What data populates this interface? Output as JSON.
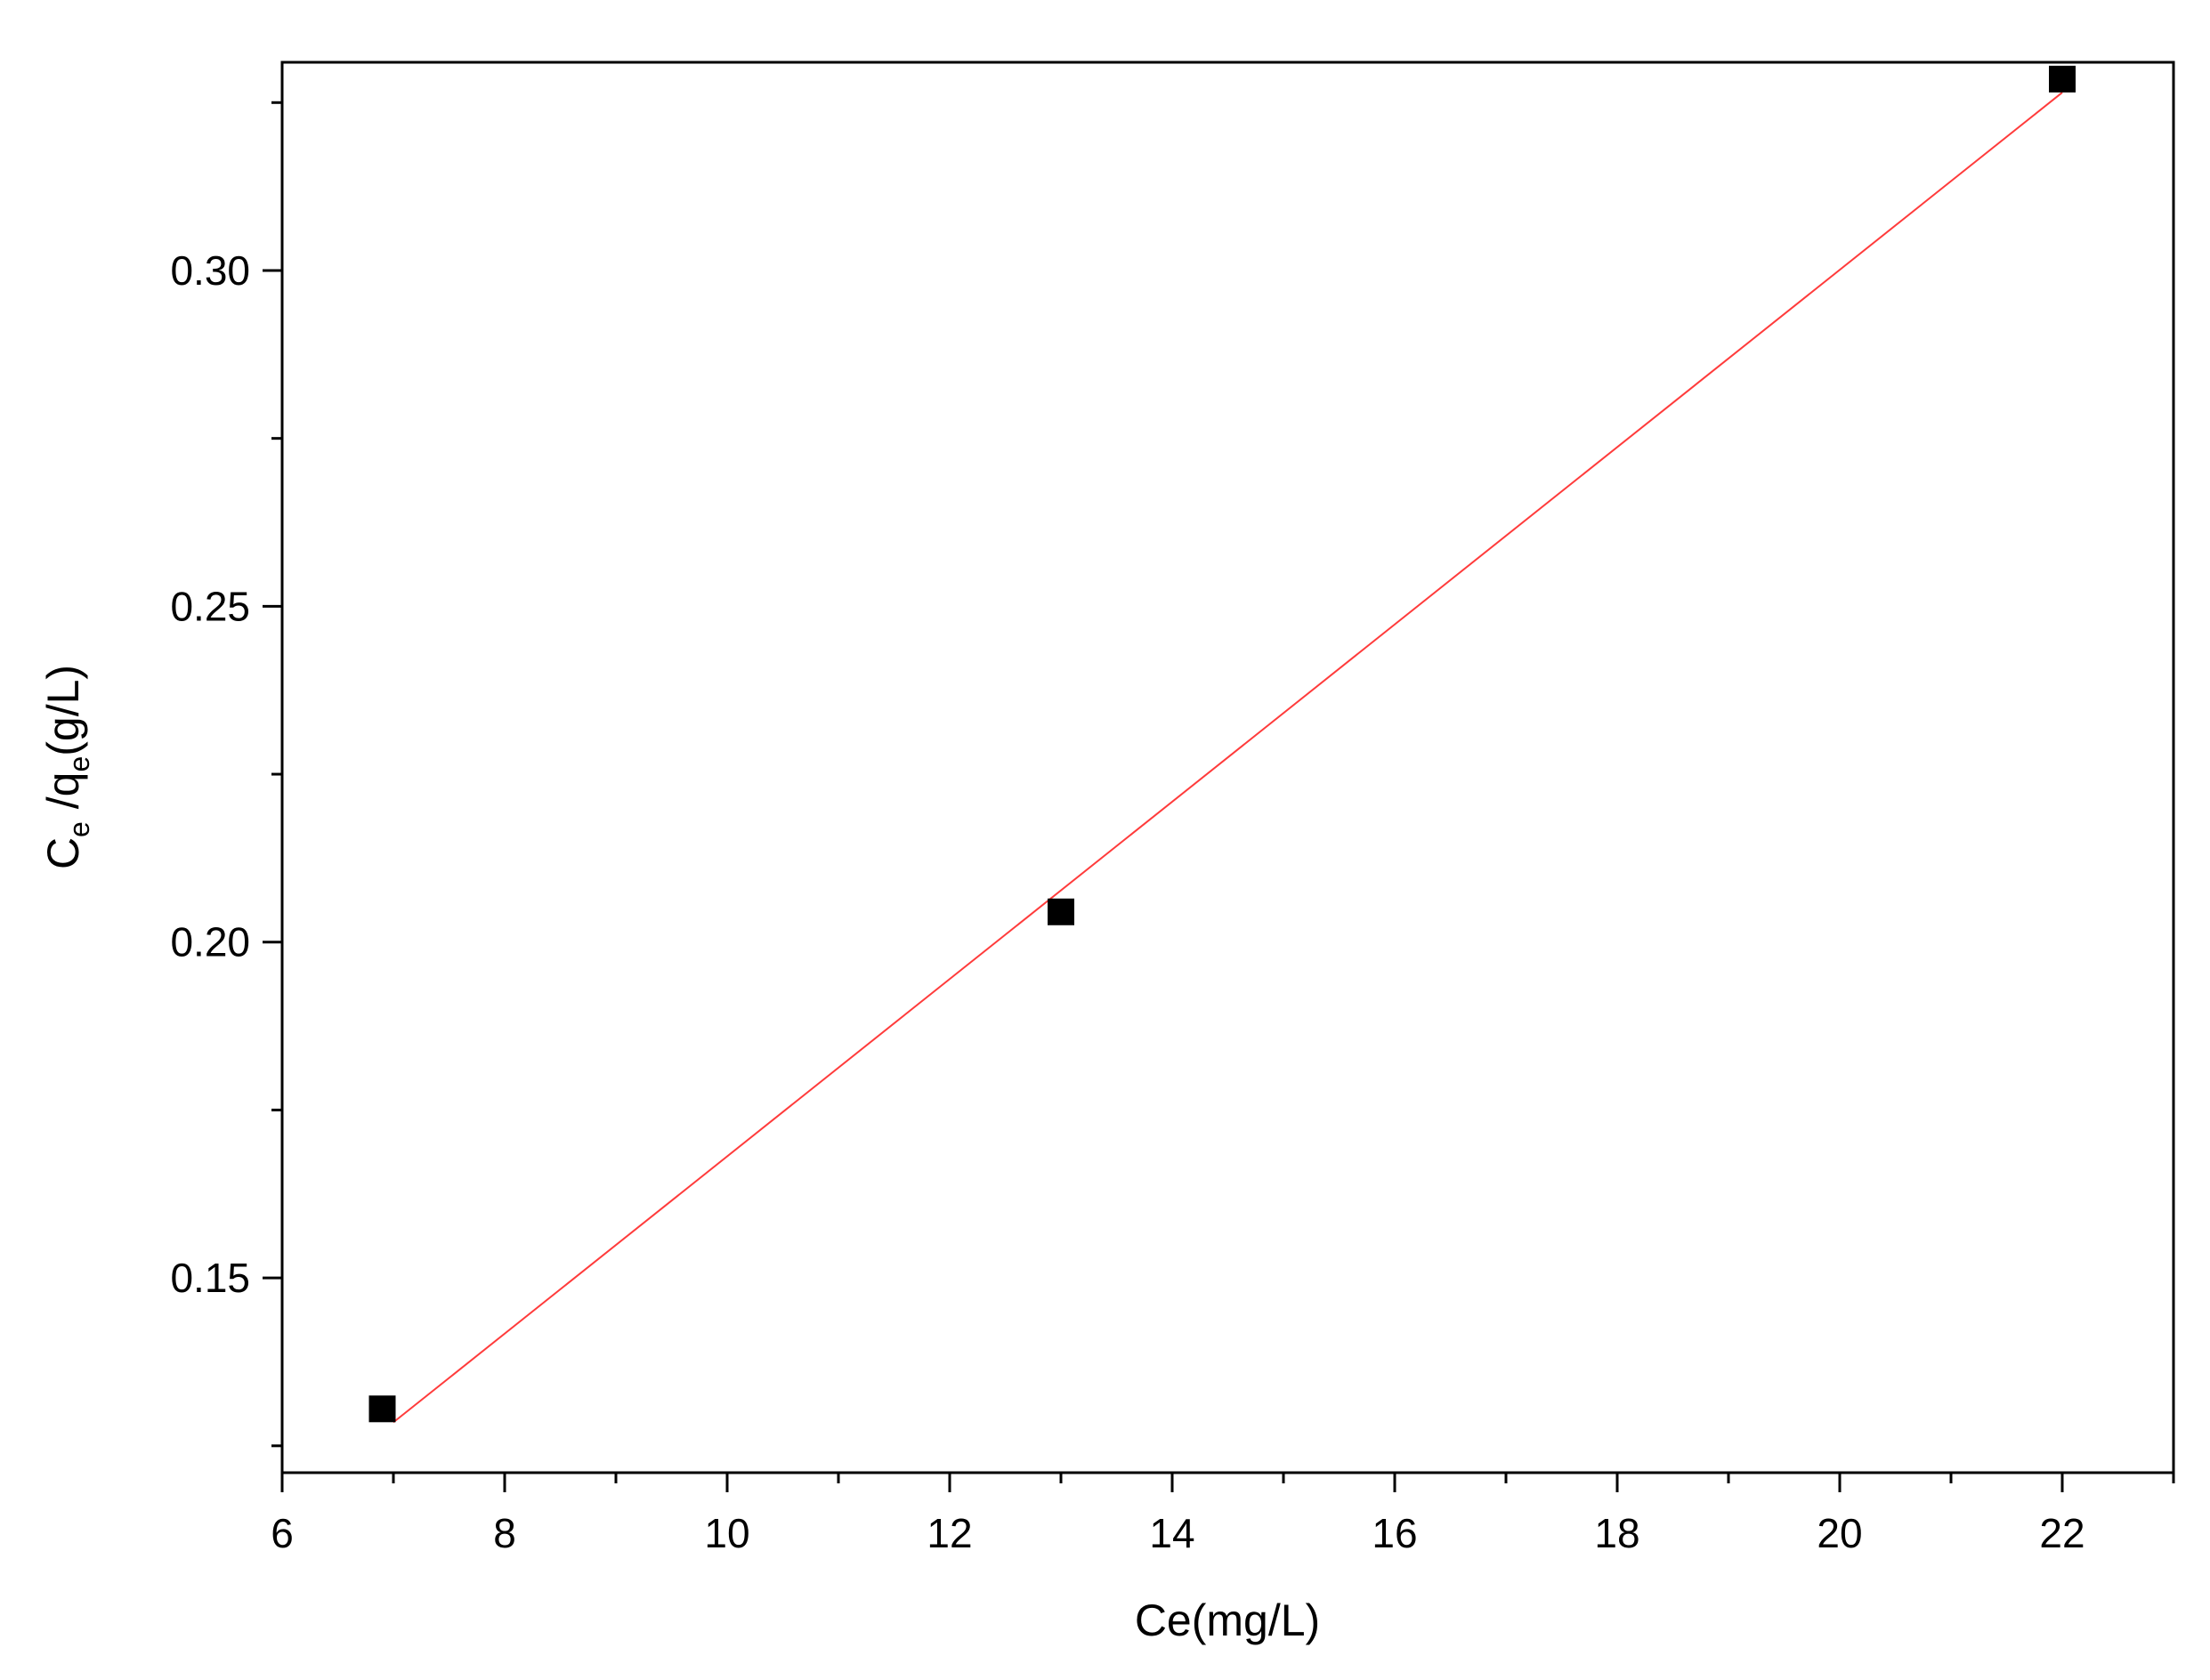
{
  "chart_data": {
    "type": "scatter",
    "title": "",
    "xlabel": "Ce(mg/L)",
    "ylabel": {
      "parts": [
        {
          "text": "C",
          "sub": false
        },
        {
          "text": "e",
          "sub": true
        },
        {
          "text": " /q",
          "sub": false
        },
        {
          "text": "e",
          "sub": true
        },
        {
          "text": "(g/L)",
          "sub": false
        }
      ]
    },
    "xlim": [
      6,
      23
    ],
    "ylim": [
      0.121,
      0.331
    ],
    "x_ticks": [
      6,
      8,
      10,
      12,
      14,
      16,
      18,
      20,
      22
    ],
    "x_tick_labels": [
      "6",
      "8",
      "10",
      "12",
      "14",
      "16",
      "18",
      "20",
      "22"
    ],
    "x_minor_ticks": [
      7,
      9,
      11,
      13,
      15,
      17,
      19,
      21,
      23
    ],
    "y_ticks": [
      0.15,
      0.2,
      0.25,
      0.3
    ],
    "y_tick_labels": [
      "0.15",
      "0.20",
      "0.25",
      "0.30"
    ],
    "y_minor_ticks": [
      0.125,
      0.175,
      0.225,
      0.275,
      0.325
    ],
    "grid": false,
    "legend": "none",
    "series": [
      {
        "type": "scatter",
        "marker": "square",
        "color": "#000000",
        "x": [
          6.9,
          13.0,
          22.0
        ],
        "y": [
          0.1305,
          0.2045,
          0.3285
        ]
      },
      {
        "type": "line",
        "color": "#ff3b3b",
        "x": [
          7.0,
          22.0
        ],
        "y": [
          0.1285,
          0.3265
        ]
      }
    ]
  }
}
